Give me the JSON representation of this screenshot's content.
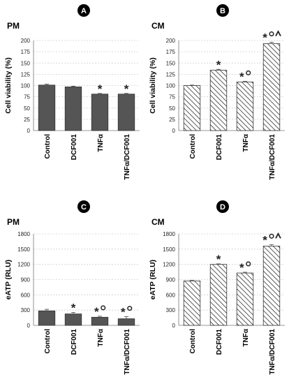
{
  "figure": {
    "accent": "#000000",
    "bar_solid_color": "#555555",
    "hatch_color": "#333333",
    "grid_color": "#cfcfcf"
  },
  "chart_data": [
    {
      "panel_label": "A",
      "type": "bar",
      "title": "PM",
      "ylabel": "Cell viability (%)",
      "xlabel": "",
      "categories": [
        "Control",
        "DCF001",
        "TNFα",
        "TNFα/DCF001"
      ],
      "values": [
        101,
        97,
        81,
        81
      ],
      "errors": [
        2,
        1.5,
        1.5,
        1.5
      ],
      "annotations": [
        "",
        "",
        "*",
        "*"
      ],
      "ylim": [
        0,
        200
      ],
      "yticks": [
        0,
        25,
        50,
        75,
        100,
        125,
        150,
        175,
        200
      ],
      "fill": "solid",
      "grid": true
    },
    {
      "panel_label": "B",
      "type": "bar",
      "title": "CM",
      "ylabel": "Cell viability (%)",
      "xlabel": "",
      "categories": [
        "Control",
        "DCF001",
        "TNFα",
        "TNFα/DCF001"
      ],
      "values": [
        100,
        134,
        108,
        193
      ],
      "errors": [
        1,
        2,
        1.5,
        3
      ],
      "annotations": [
        "",
        "*",
        "*o",
        "*o^"
      ],
      "ylim": [
        0,
        200
      ],
      "yticks": [
        0,
        25,
        50,
        75,
        100,
        125,
        150,
        175,
        200
      ],
      "fill": "hatched",
      "grid": true
    },
    {
      "panel_label": "C",
      "type": "bar",
      "title": "PM",
      "ylabel": "eATP (RLU)",
      "xlabel": "",
      "categories": [
        "Control",
        "DCF001",
        "TNFα",
        "TNFα/DCF001"
      ],
      "values": [
        285,
        225,
        160,
        130
      ],
      "errors": [
        30,
        30,
        20,
        40
      ],
      "annotations": [
        "",
        "*",
        "*o",
        "*o"
      ],
      "ylim": [
        0,
        1800
      ],
      "yticks": [
        0,
        300,
        600,
        900,
        1200,
        1500,
        1800
      ],
      "fill": "solid",
      "grid": true
    },
    {
      "panel_label": "D",
      "type": "bar",
      "title": "CM",
      "ylabel": "eATP (RLU)",
      "xlabel": "",
      "categories": [
        "Control",
        "DCF001",
        "TNFα",
        "TNFα/DCF001"
      ],
      "values": [
        875,
        1200,
        1030,
        1560
      ],
      "errors": [
        10,
        10,
        15,
        30
      ],
      "annotations": [
        "",
        "*",
        "*o",
        "*o^"
      ],
      "ylim": [
        0,
        1800
      ],
      "yticks": [
        0,
        300,
        600,
        900,
        1200,
        1500,
        1800
      ],
      "fill": "hatched",
      "grid": true
    }
  ]
}
